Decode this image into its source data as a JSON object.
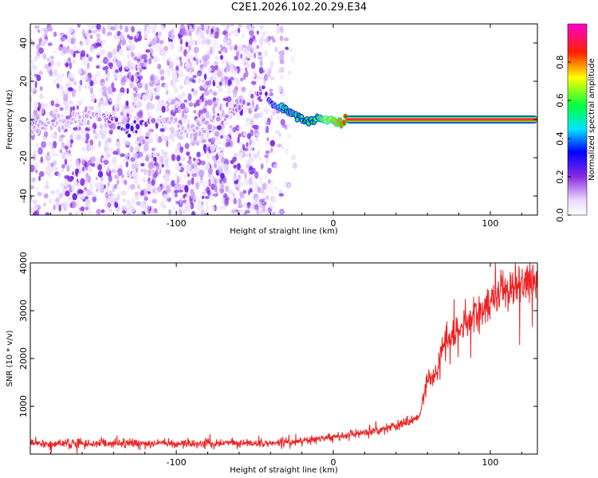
{
  "title": "C2E1.2026.102.20.29.E34",
  "chart_data": [
    {
      "type": "heatmap",
      "name": "spectrogram",
      "xlabel": "Height of straight line (km)",
      "ylabel": "Frequency (Hz)",
      "xlim": [
        -193,
        130
      ],
      "ylim": [
        -50,
        50
      ],
      "xticks": [
        -100,
        0,
        100
      ],
      "xtick_labels": [
        "-100",
        "0",
        "100"
      ],
      "yticks": [
        -40,
        -20,
        0,
        20,
        40
      ],
      "ytick_labels": [
        "-40",
        "-20",
        "0",
        "20",
        "40"
      ],
      "colorbar": {
        "label": "Normalized spectral amplitude",
        "range": [
          0,
          1
        ],
        "ticks": [
          0.0,
          0.2,
          0.4,
          0.6,
          0.8
        ],
        "tick_labels": [
          "0.0",
          "0.2",
          "0.4",
          "0.6",
          "0.8"
        ],
        "colormap": "rainbow (white → purple → blue → cyan → green → yellow → red → magenta)"
      },
      "noise_region": {
        "x_range": [
          -193,
          -38
        ],
        "freq_range": [
          -50,
          50
        ],
        "amplitude_range": [
          0.0,
          0.12
        ]
      },
      "signal_trace": {
        "x": [
          -193,
          -170,
          -150,
          -130,
          -110,
          -95,
          -80,
          -65,
          -55,
          -45,
          -40,
          -35,
          -30,
          -25,
          -20,
          -15,
          -10,
          -5,
          0,
          5,
          8,
          20,
          50,
          100,
          130
        ],
        "freq": [
          -5,
          -1,
          3,
          -5,
          2,
          -6,
          -4,
          4,
          11,
          15,
          9,
          6,
          5,
          2,
          1,
          -1,
          1,
          -1,
          0,
          -2,
          0,
          0,
          0,
          0,
          0
        ],
        "amplitude": [
          0.12,
          0.1,
          0.12,
          0.28,
          0.12,
          0.1,
          0.12,
          0.14,
          0.16,
          0.2,
          0.3,
          0.45,
          0.55,
          0.5,
          0.6,
          0.55,
          0.62,
          0.7,
          0.75,
          0.8,
          0.85,
          0.9,
          0.93,
          0.95,
          0.96
        ]
      }
    },
    {
      "type": "line",
      "name": "snr",
      "xlabel": "Height of straight line (km)",
      "ylabel": "SNR (10 * v/v)",
      "xlim": [
        -193,
        130
      ],
      "ylim": [
        0,
        4000
      ],
      "xticks": [
        -100,
        0,
        100
      ],
      "xtick_labels": [
        "-100",
        "0",
        "100"
      ],
      "yticks": [
        1000,
        2000,
        3000,
        4000
      ],
      "ytick_labels": [
        "1000",
        "2000",
        "3000",
        "4000"
      ],
      "series": [
        {
          "name": "SNR",
          "color": "#ee2222",
          "x": [
            -193,
            -150,
            -100,
            -50,
            -30,
            -20,
            -10,
            0,
            10,
            20,
            30,
            40,
            50,
            55,
            58,
            60,
            65,
            70,
            80,
            90,
            100,
            110,
            120,
            130
          ],
          "y": [
            220,
            220,
            220,
            230,
            250,
            280,
            320,
            360,
            400,
            450,
            520,
            600,
            700,
            760,
            1300,
            1550,
            1600,
            2250,
            2600,
            2950,
            3200,
            3350,
            3550,
            3700
          ]
        }
      ]
    }
  ]
}
